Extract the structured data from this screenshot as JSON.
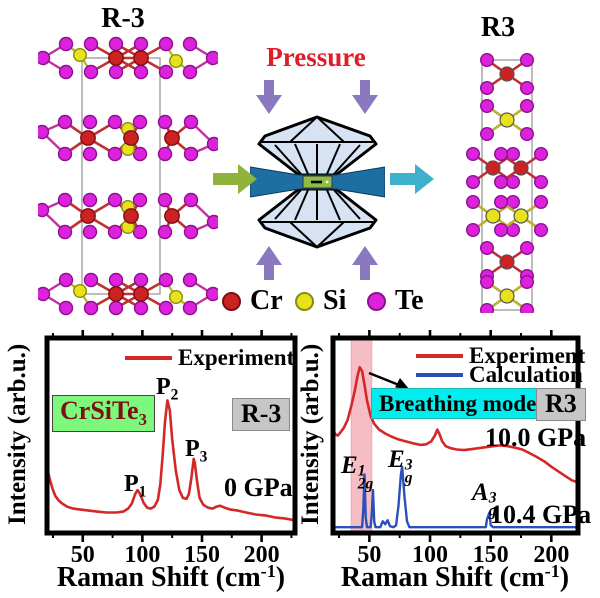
{
  "top": {
    "left_structure_title": "R-3",
    "right_structure_title": "R3",
    "pressure_label": "Pressure",
    "atom_legend": [
      {
        "element": "Cr",
        "color": "#cd2222"
      },
      {
        "element": "Si",
        "color": "#e8e21c"
      },
      {
        "element": "Te",
        "color": "#dd22dd"
      }
    ]
  },
  "colors": {
    "cr": "#cd2222",
    "si": "#e8e21c",
    "te": "#dd22dd",
    "pressure": "#e11b28",
    "green_box": "#7df87d",
    "cyan_box": "#00eeee",
    "gray_box": "#c6c6c6",
    "band": "#f5aeb6",
    "diamond": "#d7e3f3",
    "gasket": "#1d6fa3",
    "sample_chamber": "#8fbc45",
    "green_arrow": "#8fb43b",
    "cyan_arrow": "#3fb0cb",
    "purple_arrow": "#8a79be"
  },
  "chart_data": [
    {
      "type": "line",
      "panel": "left",
      "title": "",
      "ylabel": "Intensity (arb.u.)",
      "xlabel": {
        "pre": "Raman Shift (cm",
        "sup": "-1",
        "post": ")"
      },
      "xlim": [
        20,
        228
      ],
      "ylim_note": "intensity in arbitrary units 0-100",
      "grid": false,
      "legend_position": "top-right-inside",
      "xticks": [
        50,
        100,
        150,
        200
      ],
      "minor_xticks": [
        25,
        75,
        125,
        175,
        225
      ],
      "legend": [
        {
          "name": "Experiment",
          "color": "#d42828"
        }
      ],
      "annotations": {
        "sample": {
          "base": "CrSiTe",
          "sub": "3"
        },
        "phase": "R-3",
        "pressure": "0 GPa",
        "peaks": [
          {
            "base": "P",
            "sub": "1",
            "x": 96
          },
          {
            "base": "P",
            "sub": "2",
            "x": 121
          },
          {
            "base": "P",
            "sub": "3",
            "x": 143
          }
        ]
      },
      "series": [
        {
          "name": "Experiment",
          "color": "#d42828",
          "width": 2.6,
          "points": [
            [
              20,
              35
            ],
            [
              21,
              31
            ],
            [
              23,
              26
            ],
            [
              25,
              22
            ],
            [
              27,
              19
            ],
            [
              30,
              16.5
            ],
            [
              33,
              15
            ],
            [
              37,
              13.5
            ],
            [
              42,
              12.5
            ],
            [
              48,
              12
            ],
            [
              55,
              11.5
            ],
            [
              62,
              11
            ],
            [
              70,
              10.5
            ],
            [
              78,
              10.5
            ],
            [
              84,
              11
            ],
            [
              88,
              12.5
            ],
            [
              91,
              15
            ],
            [
              94,
              20
            ],
            [
              96,
              22
            ],
            [
              98,
              20
            ],
            [
              101,
              15.5
            ],
            [
              104,
              13
            ],
            [
              107,
              12.5
            ],
            [
              110,
              13.5
            ],
            [
              113,
              17
            ],
            [
              115,
              25
            ],
            [
              117,
              40
            ],
            [
              119,
              57
            ],
            [
              121,
              68
            ],
            [
              123,
              63
            ],
            [
              125,
              48
            ],
            [
              128,
              32
            ],
            [
              131,
              22
            ],
            [
              134,
              18
            ],
            [
              137,
              17.5
            ],
            [
              139,
              20
            ],
            [
              141,
              28
            ],
            [
              143,
              38
            ],
            [
              144,
              36
            ],
            [
              146,
              26
            ],
            [
              148,
              18
            ],
            [
              151,
              14.5
            ],
            [
              155,
              13
            ],
            [
              159,
              12.5
            ],
            [
              162,
              13.5
            ],
            [
              165,
              14
            ],
            [
              169,
              13
            ],
            [
              174,
              12
            ],
            [
              180,
              11.5
            ],
            [
              187,
              10.5
            ],
            [
              195,
              9.5
            ],
            [
              203,
              9
            ],
            [
              211,
              8
            ],
            [
              219,
              7.5
            ],
            [
              228,
              6.5
            ]
          ]
        }
      ]
    },
    {
      "type": "line",
      "panel": "right",
      "title": "",
      "ylabel": "Intensity (arb.u.)",
      "xlabel": {
        "pre": "Raman Shift (cm",
        "sup": "-1",
        "post": ")"
      },
      "xlim": [
        20,
        222
      ],
      "grid": false,
      "legend_position": "top-right-inside",
      "xticks": [
        50,
        100,
        150,
        200
      ],
      "minor_xticks": [
        25,
        75,
        125,
        175
      ],
      "highlight_band": [
        35,
        52
      ],
      "highlight_band_color": "#f5aeb6",
      "legend": [
        {
          "name": "Experiment",
          "color": "#d42828"
        },
        {
          "name": "Calculation",
          "color": "#2b50b8"
        }
      ],
      "annotations": {
        "phase": "R3",
        "breathing_mode": "Breathing mode",
        "experiment_pressure": "10.0 GPa",
        "calculation_pressure": "10.4 GPa",
        "modes": [
          {
            "base": "E",
            "sup": "1",
            "sub": "2g",
            "x": 46
          },
          {
            "base": "E",
            "sup": "3",
            "sub": "g",
            "x": 77
          },
          {
            "base": "A",
            "sup": "3",
            "sub": "g",
            "x": 149
          }
        ]
      },
      "series": [
        {
          "name": "Experiment",
          "color": "#d42828",
          "width": 2.6,
          "points": [
            [
              20,
              53
            ],
            [
              22,
              50.5
            ],
            [
              24,
              50
            ],
            [
              26,
              51.5
            ],
            [
              29,
              54
            ],
            [
              32,
              58
            ],
            [
              35,
              65
            ],
            [
              38,
              73
            ],
            [
              40,
              80
            ],
            [
              42,
              85
            ],
            [
              44,
              83
            ],
            [
              46,
              76
            ],
            [
              48,
              68
            ],
            [
              51,
              60
            ],
            [
              54,
              56
            ],
            [
              58,
              53
            ],
            [
              63,
              51
            ],
            [
              68,
              49.5
            ],
            [
              74,
              48
            ],
            [
              80,
              47
            ],
            [
              86,
              46
            ],
            [
              92,
              45.2
            ],
            [
              97,
              45.5
            ],
            [
              101,
              47
            ],
            [
              104,
              50
            ],
            [
              106,
              53
            ],
            [
              108,
              50.5
            ],
            [
              110,
              47
            ],
            [
              113,
              44.5
            ],
            [
              117,
              43.5
            ],
            [
              122,
              42.8
            ],
            [
              128,
              42.5
            ],
            [
              134,
              43
            ],
            [
              140,
              43.5
            ],
            [
              146,
              44
            ],
            [
              152,
              44.5
            ],
            [
              158,
              45
            ],
            [
              164,
              44.5
            ],
            [
              170,
              43.8
            ],
            [
              176,
              42.8
            ],
            [
              182,
              41
            ],
            [
              188,
              39
            ],
            [
              194,
              36.8
            ],
            [
              200,
              34
            ],
            [
              206,
              31.5
            ],
            [
              212,
              29
            ],
            [
              217,
              27
            ],
            [
              222,
              26
            ]
          ]
        },
        {
          "name": "Calculation",
          "color": "#2b50b8",
          "width": 2.4,
          "points": [
            [
              20,
              3
            ],
            [
              40,
              3
            ],
            [
              44,
              3
            ],
            [
              45,
              12
            ],
            [
              46,
              30
            ],
            [
              47,
              8
            ],
            [
              48,
              3
            ],
            [
              51,
              3
            ],
            [
              52,
              10
            ],
            [
              53,
              22
            ],
            [
              54,
              6
            ],
            [
              55,
              3
            ],
            [
              59,
              3
            ],
            [
              61,
              6
            ],
            [
              63,
              4.5
            ],
            [
              65,
              6.5
            ],
            [
              67,
              3.5
            ],
            [
              70,
              3
            ],
            [
              72,
              4
            ],
            [
              74,
              14
            ],
            [
              76,
              30
            ],
            [
              77,
              34
            ],
            [
              79,
              18
            ],
            [
              81,
              6
            ],
            [
              83,
              3
            ],
            [
              88,
              3
            ],
            [
              95,
              3
            ],
            [
              105,
              3
            ],
            [
              115,
              3
            ],
            [
              125,
              3
            ],
            [
              135,
              3
            ],
            [
              143,
              3
            ],
            [
              146,
              3
            ],
            [
              147,
              7
            ],
            [
              149,
              10.5
            ],
            [
              150,
              4
            ],
            [
              152,
              3
            ],
            [
              160,
              3
            ],
            [
              175,
              3
            ],
            [
              190,
              3
            ],
            [
              205,
              3
            ],
            [
              222,
              3
            ]
          ]
        }
      ]
    }
  ]
}
